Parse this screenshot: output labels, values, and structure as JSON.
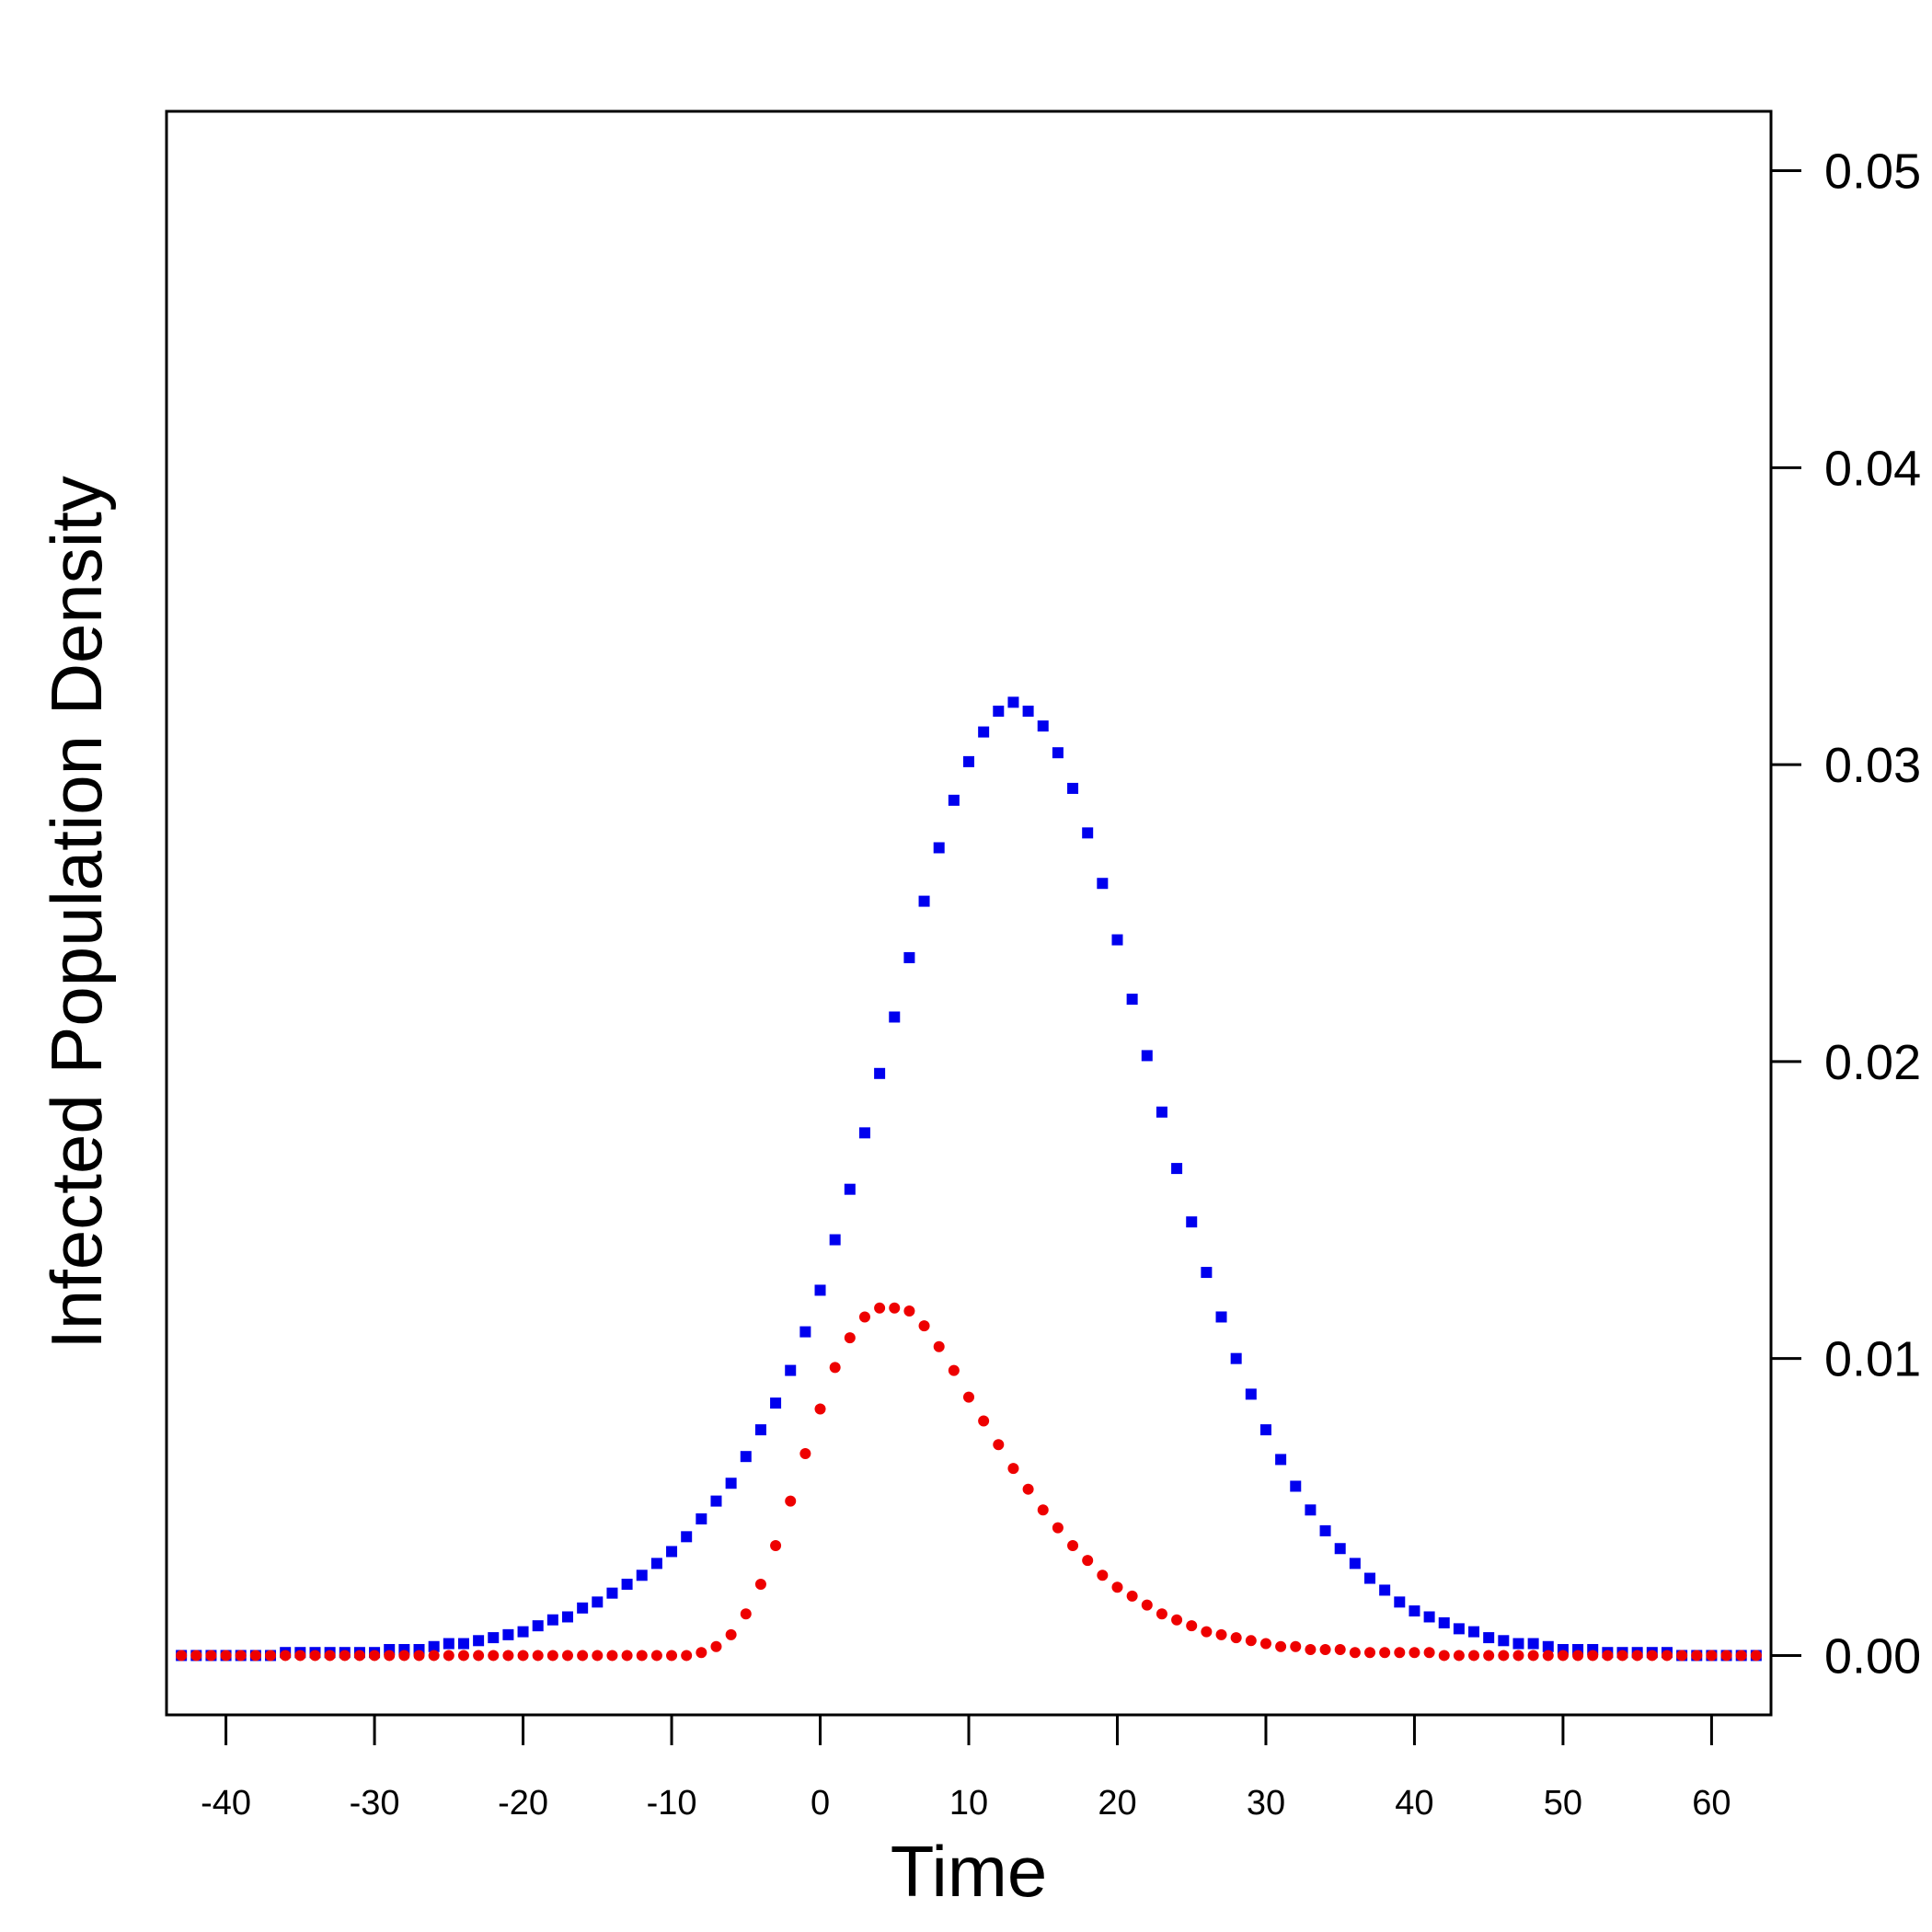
{
  "chart_data": {
    "type": "scatter",
    "title": "",
    "xlabel": "Time",
    "ylabel": "Infected Population Density",
    "xlim": [
      -44,
      64
    ],
    "ylim": [
      -0.002,
      0.052
    ],
    "x_ticks": [
      -40,
      -30,
      -20,
      -10,
      0,
      10,
      20,
      30,
      40,
      50,
      60
    ],
    "x_tick_labels": [
      "-40",
      "-30",
      "-20",
      "-10",
      "0",
      "10",
      "20",
      "30",
      "40",
      "50",
      "60"
    ],
    "y_ticks": [
      0.0,
      0.01,
      0.02,
      0.03,
      0.04,
      0.05
    ],
    "y_tick_labels": [
      "0.00",
      "0.01",
      "0.02",
      "0.03",
      "0.04",
      "0.05"
    ],
    "y_axis_side": "right",
    "grid": false,
    "series": [
      {
        "name": "blue squares",
        "color": "#0000ee",
        "marker": "square",
        "x": [
          -43,
          -42,
          -41,
          -40,
          -39,
          -38,
          -37,
          -36,
          -35,
          -34,
          -33,
          -32,
          -31,
          -30,
          -29,
          -28,
          -27,
          -26,
          -25,
          -24,
          -23,
          -22,
          -21,
          -20,
          -19,
          -18,
          -17,
          -16,
          -15,
          -14,
          -13,
          -12,
          -11,
          -10,
          -9,
          -8,
          -7,
          -6,
          -5,
          -4,
          -3,
          -2,
          -1,
          0,
          1,
          2,
          3,
          4,
          5,
          6,
          7,
          8,
          9,
          10,
          11,
          12,
          13,
          14,
          15,
          16,
          17,
          18,
          19,
          20,
          21,
          22,
          23,
          24,
          25,
          26,
          27,
          28,
          29,
          30,
          31,
          32,
          33,
          34,
          35,
          36,
          37,
          38,
          39,
          40,
          41,
          42,
          43,
          44,
          45,
          46,
          47,
          48,
          49,
          50,
          51,
          52,
          53,
          54,
          55,
          56,
          57,
          58,
          59,
          60,
          61,
          62,
          63
        ],
        "values": [
          0.0,
          0.0,
          0.0,
          0.0,
          0.0,
          0.0,
          0.0,
          0.0001,
          0.0001,
          0.0001,
          0.0001,
          0.0001,
          0.0001,
          0.0001,
          0.0002,
          0.0002,
          0.0002,
          0.0003,
          0.0004,
          0.0004,
          0.0005,
          0.0006,
          0.0007,
          0.0008,
          0.001,
          0.0012,
          0.0013,
          0.0016,
          0.0018,
          0.0021,
          0.0024,
          0.0027,
          0.0031,
          0.0035,
          0.004,
          0.0046,
          0.0052,
          0.0058,
          0.0067,
          0.0076,
          0.0085,
          0.0096,
          0.0109,
          0.0123,
          0.014,
          0.0157,
          0.0176,
          0.0196,
          0.0215,
          0.0235,
          0.0254,
          0.0272,
          0.0288,
          0.0301,
          0.0311,
          0.0318,
          0.0321,
          0.0318,
          0.0313,
          0.0304,
          0.0292,
          0.0277,
          0.026,
          0.0241,
          0.0221,
          0.0202,
          0.0183,
          0.0164,
          0.0146,
          0.0129,
          0.0114,
          0.01,
          0.0088,
          0.0076,
          0.0066,
          0.0057,
          0.0049,
          0.0042,
          0.0036,
          0.0031,
          0.0026,
          0.0022,
          0.0018,
          0.0015,
          0.0013,
          0.0011,
          0.0009,
          0.0008,
          0.0006,
          0.0005,
          0.0004,
          0.0004,
          0.0003,
          0.0002,
          0.0002,
          0.0002,
          0.0001,
          0.0001,
          0.0001,
          0.0001,
          0.0001,
          0.0,
          0.0,
          0.0,
          0.0,
          0.0,
          0.0
        ]
      },
      {
        "name": "red dots",
        "color": "#ee0000",
        "marker": "circle",
        "x": [
          -43,
          -42,
          -41,
          -40,
          -39,
          -38,
          -37,
          -36,
          -35,
          -34,
          -33,
          -32,
          -31,
          -30,
          -29,
          -28,
          -27,
          -26,
          -25,
          -24,
          -23,
          -22,
          -21,
          -20,
          -19,
          -18,
          -17,
          -16,
          -15,
          -14,
          -13,
          -12,
          -11,
          -10,
          -9,
          -8,
          -7,
          -6,
          -5,
          -4,
          -3,
          -2,
          -1,
          0,
          1,
          2,
          3,
          4,
          5,
          6,
          7,
          8,
          9,
          10,
          11,
          12,
          13,
          14,
          15,
          16,
          17,
          18,
          19,
          20,
          21,
          22,
          23,
          24,
          25,
          26,
          27,
          28,
          29,
          30,
          31,
          32,
          33,
          34,
          35,
          36,
          37,
          38,
          39,
          40,
          41,
          42,
          43,
          44,
          45,
          46,
          47,
          48,
          49,
          50,
          51,
          52,
          53,
          54,
          55,
          56,
          57,
          58,
          59,
          60,
          61,
          62,
          63
        ],
        "values": [
          0.0,
          0.0,
          0.0,
          0.0,
          0.0,
          0.0,
          0.0,
          0.0,
          0.0,
          0.0,
          0.0,
          0.0,
          0.0,
          0.0,
          0.0,
          0.0,
          0.0,
          0.0,
          0.0,
          0.0,
          0.0,
          0.0,
          0.0,
          0.0,
          0.0,
          0.0,
          0.0,
          0.0,
          0.0,
          0.0,
          0.0,
          0.0,
          0.0,
          0.0,
          0.0,
          0.0001,
          0.0003,
          0.0007,
          0.0014,
          0.0024,
          0.0037,
          0.0052,
          0.0068,
          0.0083,
          0.0097,
          0.0107,
          0.0114,
          0.0117,
          0.0117,
          0.0116,
          0.0111,
          0.0104,
          0.0096,
          0.0087,
          0.0079,
          0.0071,
          0.0063,
          0.0056,
          0.0049,
          0.0043,
          0.0037,
          0.0032,
          0.0027,
          0.0023,
          0.002,
          0.0017,
          0.0014,
          0.0012,
          0.001,
          0.0008,
          0.0007,
          0.0006,
          0.0005,
          0.0004,
          0.0003,
          0.0003,
          0.0002,
          0.0002,
          0.0002,
          0.0001,
          0.0001,
          0.0001,
          0.0001,
          0.0001,
          0.0001,
          0.0,
          0.0,
          0.0,
          0.0,
          0.0,
          0.0,
          0.0,
          0.0,
          0.0,
          0.0,
          0.0,
          0.0,
          0.0,
          0.0,
          0.0,
          0.0,
          0.0,
          0.0,
          0.0,
          0.0,
          0.0,
          0.0
        ]
      }
    ]
  }
}
